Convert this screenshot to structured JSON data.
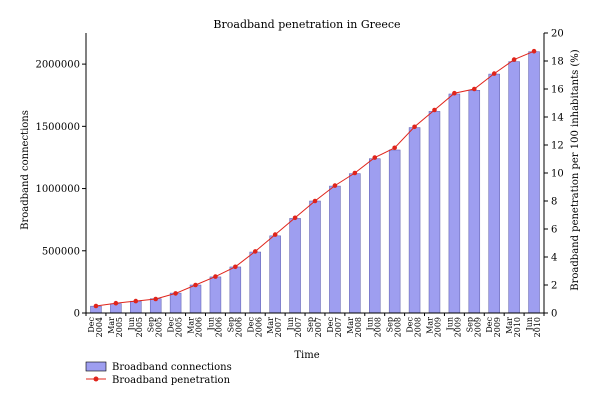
{
  "chart_data": {
    "type": "bar+line",
    "title": "Broadband penetration in Greece",
    "xlabel": "Time",
    "ylabel_left": "Broadband connections",
    "ylabel_right": "Broadband penetration per 100 inhabitants (%)",
    "categories": [
      [
        "Dec",
        "2004"
      ],
      [
        "Mar",
        "2005"
      ],
      [
        "Jun",
        "2005"
      ],
      [
        "Sep",
        "2005"
      ],
      [
        "Dec",
        "2005"
      ],
      [
        "Mar",
        "2006"
      ],
      [
        "Jun",
        "2006"
      ],
      [
        "Sep",
        "2006"
      ],
      [
        "Dec",
        "2006"
      ],
      [
        "Mar",
        "2007"
      ],
      [
        "Jun",
        "2007"
      ],
      [
        "Sep",
        "2007"
      ],
      [
        "Dec",
        "2007"
      ],
      [
        "Mar",
        "2008"
      ],
      [
        "Jun",
        "2008"
      ],
      [
        "Sep",
        "2008"
      ],
      [
        "Dec",
        "2008"
      ],
      [
        "Mar",
        "2009"
      ],
      [
        "Jun",
        "2009"
      ],
      [
        "Sep",
        "2009"
      ],
      [
        "Dec",
        "2009"
      ],
      [
        "Mar",
        "2010"
      ],
      [
        "Jun",
        "2010"
      ]
    ],
    "ylim_left": [
      0,
      2250000
    ],
    "yticks_left": [
      0,
      500000,
      1000000,
      1500000,
      2000000
    ],
    "ylim_right": [
      0,
      20
    ],
    "yticks_right": [
      0,
      2,
      4,
      6,
      8,
      10,
      12,
      14,
      16,
      18,
      20
    ],
    "series": [
      {
        "name": "Broadband connections",
        "type": "bar",
        "axis": "left",
        "color": "#9e9ef0",
        "values": [
          55000,
          75000,
          95000,
          115000,
          160000,
          225000,
          290000,
          370000,
          490000,
          620000,
          760000,
          900000,
          1020000,
          1120000,
          1240000,
          1310000,
          1490000,
          1620000,
          1760000,
          1790000,
          1920000,
          2020000,
          2100000
        ]
      },
      {
        "name": "Broadband penetration",
        "type": "line",
        "axis": "right",
        "color": "#e0241b",
        "values": [
          0.5,
          0.7,
          0.85,
          1.0,
          1.4,
          2.0,
          2.6,
          3.3,
          4.4,
          5.6,
          6.8,
          8.0,
          9.1,
          10.0,
          11.1,
          11.8,
          13.3,
          14.5,
          15.7,
          16.0,
          17.1,
          18.1,
          18.7
        ]
      }
    ],
    "legend": {
      "position": "bottom-left"
    }
  }
}
